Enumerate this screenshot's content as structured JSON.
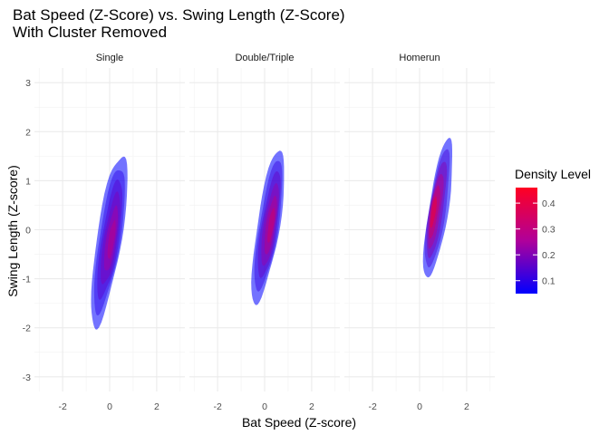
{
  "chart_data": {
    "type": "density-contour",
    "title": "Bat Speed (Z-Score) vs. Swing Length (Z-Score)",
    "subtitle": "With Cluster Removed",
    "xlabel": "Bat Speed (Z-score)",
    "ylabel": "Swing Length (Z-score)",
    "xlim": [
      -3.2,
      3.2
    ],
    "ylim": [
      -3.3,
      3.3
    ],
    "x_ticks": [
      "-2",
      "0",
      "2"
    ],
    "y_ticks": [
      "-3",
      "-2",
      "-1",
      "0",
      "1",
      "2",
      "3"
    ],
    "grid": true,
    "legend": {
      "title": "Density Level",
      "placement": "right",
      "ticks": [
        "0.1",
        "0.2",
        "0.3",
        "0.4"
      ],
      "range": [
        0.05,
        0.46
      ],
      "low_color": "#0000ff",
      "high_color": "#ff0000"
    },
    "panels": [
      {
        "name": "Single",
        "center": [
          0.1,
          -0.2
        ],
        "x_extent": [
          -1.3,
          1.25
        ],
        "y_extent": [
          -1.95,
          1.55
        ],
        "peak_density": 0.3
      },
      {
        "name": "Double/Triple",
        "center": [
          0.3,
          0.1
        ],
        "x_extent": [
          -1.0,
          1.3
        ],
        "y_extent": [
          -1.5,
          1.65
        ],
        "peak_density": 0.35
      },
      {
        "name": "Homerun",
        "center": [
          0.55,
          0.35
        ],
        "x_extent": [
          -0.2,
          1.8
        ],
        "y_extent": [
          -1.0,
          1.85
        ],
        "peak_density": 0.45
      }
    ]
  }
}
